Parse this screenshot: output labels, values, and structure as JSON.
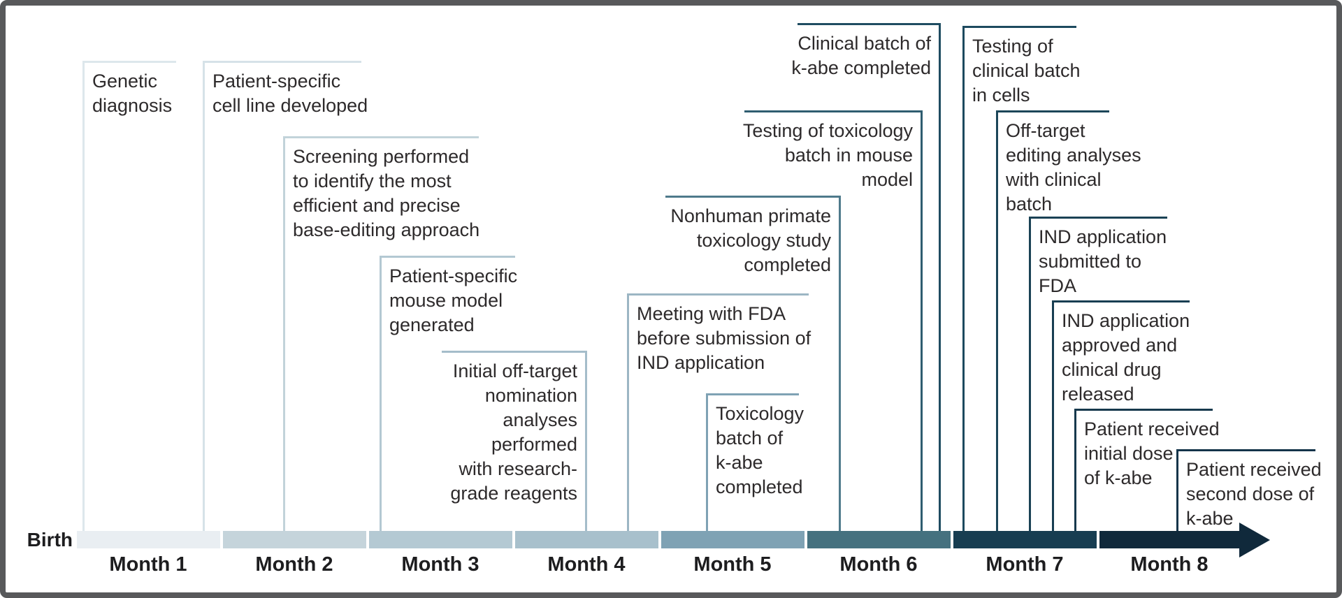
{
  "figure": {
    "birth_label": "Birth",
    "border_color": "#58595b",
    "background_color": "#ffffff",
    "text_color": "#2d2a2b",
    "drug_name": "k-abe"
  },
  "timeline": {
    "arrow_color": "#10293b",
    "months": [
      {
        "label": "Month 1",
        "color": "#e9eef2"
      },
      {
        "label": "Month 2",
        "color": "#c5d4db"
      },
      {
        "label": "Month 3",
        "color": "#b4c9d3"
      },
      {
        "label": "Month 4",
        "color": "#a8c0cc"
      },
      {
        "label": "Month 5",
        "color": "#7fa2b4"
      },
      {
        "label": "Month 6",
        "color": "#45717f"
      },
      {
        "label": "Month 7",
        "color": "#173d51"
      },
      {
        "label": "Month 8",
        "color": "#10293b"
      }
    ]
  },
  "milestones": [
    {
      "text": "Genetic\ndiagnosis",
      "month": "Month 1",
      "color": "#dde7ec"
    },
    {
      "text": "Patient-specific\ncell line developed",
      "month": "Month 1",
      "color": "#d6e2e8"
    },
    {
      "text": "Screening performed\nto identify the most\nefficient and precise\nbase-editing approach",
      "month": "Month 2",
      "color": "#c2d3da"
    },
    {
      "text": "Patient-specific\nmouse model\ngenerated",
      "month": "Month 3",
      "color": "#b3c8d2"
    },
    {
      "text": "Initial off-target\nnomination\nanalyses\nperformed\nwith research-\ngrade reagents",
      "month": "Month 4",
      "color": "#a5bdca"
    },
    {
      "text": "Meeting with FDA\nbefore submission of\nIND application",
      "month": "Month 4",
      "color": "#9cb6c4"
    },
    {
      "text": "Toxicology\nbatch of\nk-abe\ncompleted",
      "month": "Month 5",
      "color": "#7fa2b4"
    },
    {
      "text": "Nonhuman primate\ntoxicology study\ncompleted",
      "month": "Month 6",
      "color": "#4f7a8b"
    },
    {
      "text": "Testing of toxicology\nbatch in mouse\nmodel",
      "month": "Month 6",
      "color": "#2f5d70"
    },
    {
      "text": "Clinical batch of\nk-abe completed",
      "month": "Month 6",
      "color": "#1f4c61"
    },
    {
      "text": "Testing of\nclinical batch\nin cells",
      "month": "Month 7",
      "color": "#1d4a5f"
    },
    {
      "text": "Off-target\nediting analyses\nwith clinical\nbatch",
      "month": "Month 7",
      "color": "#1c4659"
    },
    {
      "text": "IND application\nsubmitted to\nFDA",
      "month": "Month 7",
      "color": "#1a4255"
    },
    {
      "text": "IND application\napproved and\nclinical drug\nreleased",
      "month": "Month 7",
      "color": "#183e52"
    },
    {
      "text": "Patient received\ninitial dose\nof k-abe",
      "month": "Month 7",
      "color": "#17394d"
    },
    {
      "text": "Patient received\nsecond dose of\nk-abe",
      "month": "Month 8",
      "color": "#14344a"
    }
  ]
}
